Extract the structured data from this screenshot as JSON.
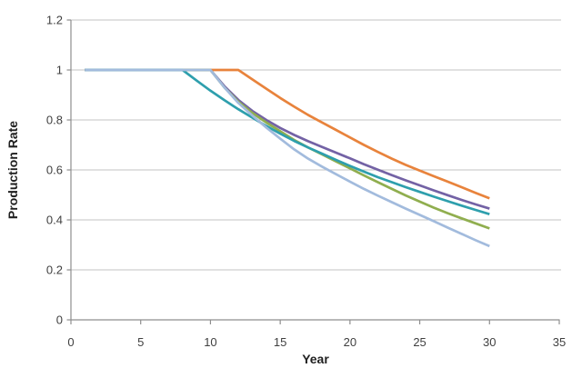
{
  "chart_data": {
    "type": "line",
    "title": "",
    "xlabel": "Year",
    "ylabel": "Production Rate",
    "xlim": [
      0,
      35
    ],
    "ylim": [
      0,
      1.2
    ],
    "x_ticks": [
      0,
      5,
      10,
      15,
      20,
      25,
      30,
      35
    ],
    "x_tick_labels": [
      "0",
      "5",
      "10",
      "15",
      "20",
      "25",
      "30",
      "35"
    ],
    "y_ticks": [
      0,
      0.2,
      0.4,
      0.6,
      0.8,
      1,
      1.2
    ],
    "y_tick_labels": [
      "0",
      "0.2",
      "0.4",
      "0.6",
      "0.8",
      "1",
      "1.2"
    ],
    "grid": "horizontal",
    "legend": "none",
    "x": [
      1,
      2,
      3,
      4,
      5,
      6,
      7,
      8,
      9,
      10,
      11,
      12,
      13,
      14,
      15,
      16,
      17,
      18,
      19,
      20,
      21,
      22,
      23,
      24,
      25,
      26,
      27,
      28,
      29,
      30
    ],
    "series": [
      {
        "name": "orange-curve",
        "color": "#e8833c",
        "plateau_until_year": 12,
        "end_value": 0.486,
        "values": [
          1,
          1,
          1,
          1,
          1,
          1,
          1,
          1,
          1,
          1,
          1,
          1,
          0.962,
          0.925,
          0.888,
          0.853,
          0.82,
          0.79,
          0.76,
          0.73,
          0.7,
          0.672,
          0.645,
          0.62,
          0.597,
          0.575,
          0.553,
          0.531,
          0.508,
          0.486
        ]
      },
      {
        "name": "purple-curve",
        "color": "#7362a5",
        "plateau_until_year": 10,
        "end_value": 0.445,
        "values": [
          1,
          1,
          1,
          1,
          1,
          1,
          1,
          1,
          1,
          1,
          0.935,
          0.88,
          0.836,
          0.8,
          0.768,
          0.74,
          0.715,
          0.692,
          0.669,
          0.646,
          0.623,
          0.601,
          0.579,
          0.558,
          0.538,
          0.518,
          0.499,
          0.48,
          0.462,
          0.445
        ]
      },
      {
        "name": "green-curve",
        "color": "#90ae4f",
        "plateau_until_year": 10,
        "end_value": 0.366,
        "values": [
          1,
          1,
          1,
          1,
          1,
          1,
          1,
          1,
          1,
          1,
          0.93,
          0.873,
          0.828,
          0.79,
          0.755,
          0.72,
          0.69,
          0.662,
          0.634,
          0.606,
          0.578,
          0.551,
          0.524,
          0.498,
          0.473,
          0.449,
          0.427,
          0.406,
          0.386,
          0.366
        ]
      },
      {
        "name": "teal-curve",
        "color": "#2e9fad",
        "plateau_until_year": 8,
        "end_value": 0.423,
        "values": [
          1,
          1,
          1,
          1,
          1,
          1,
          1,
          1,
          0.958,
          0.917,
          0.879,
          0.843,
          0.809,
          0.776,
          0.745,
          0.716,
          0.69,
          0.665,
          0.64,
          0.616,
          0.593,
          0.571,
          0.551,
          0.531,
          0.512,
          0.493,
          0.475,
          0.457,
          0.44,
          0.423
        ]
      },
      {
        "name": "lightblue-curve",
        "color": "#a2bbdd",
        "plateau_until_year": 10,
        "end_value": 0.295,
        "values": [
          1,
          1,
          1,
          1,
          1,
          1,
          1,
          1,
          1,
          1,
          0.93,
          0.868,
          0.818,
          0.77,
          0.725,
          0.682,
          0.645,
          0.613,
          0.583,
          0.553,
          0.524,
          0.497,
          0.471,
          0.445,
          0.42,
          0.395,
          0.369,
          0.344,
          0.319,
          0.295
        ]
      }
    ]
  },
  "colors": {
    "background": "#ffffff",
    "gridline": "#c3c3c3",
    "axis_line": "#8e8e8e",
    "tick_label": "#3f3f3f",
    "axis_title": "#1f1f1f"
  }
}
